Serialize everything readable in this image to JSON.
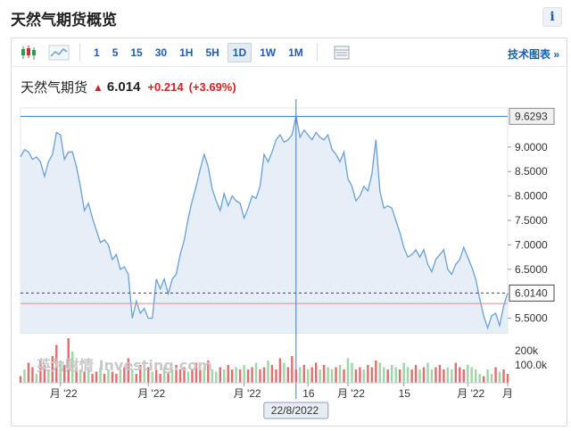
{
  "page": {
    "title": "天然气期货概览",
    "info_label": "i"
  },
  "toolbar": {
    "candle_icon": "candlestick-icon",
    "area_icon": "area-chart-icon",
    "intervals": [
      "1",
      "5",
      "15",
      "30",
      "1H",
      "5H",
      "1D",
      "1W",
      "1M"
    ],
    "active_interval": "1D",
    "table_icon": "table-icon",
    "tech_chart_label": "技术图表 »"
  },
  "quote": {
    "name": "天然气期货",
    "price": "6.014",
    "change": "+0.214",
    "change_pct": "(+3.69%)"
  },
  "chart": {
    "crosshair_date": "22/8/2022",
    "max_label": "9.6293",
    "current_label": "6.0140",
    "watermark": "英为财情 Investing.com",
    "colors": {
      "line": "#6aa0d6",
      "area": "#e6eef7",
      "up": "#e07070",
      "down": "#9fd5a8",
      "current": "#444444",
      "ref": "#e28a8a",
      "crosshair": "#3a7bc8"
    }
  },
  "chart_data": {
    "type": "area",
    "y_axis_ticks": [
      "9.0000",
      "8.5000",
      "8.0000",
      "7.5000",
      "7.0000",
      "6.5000",
      "5.5000"
    ],
    "volume_ticks": [
      "200k",
      "100.0k"
    ],
    "x_tick_labels": [
      "月 '22",
      "月 '22",
      "月 '22",
      "16",
      "月 '22",
      "15",
      "月 '22",
      "月"
    ],
    "ylim": [
      5.2,
      9.8
    ],
    "price": [
      8.8,
      8.95,
      8.9,
      8.75,
      8.8,
      8.7,
      8.4,
      8.7,
      8.85,
      9.3,
      9.25,
      8.75,
      8.9,
      8.9,
      8.6,
      8.2,
      7.7,
      7.85,
      7.55,
      7.3,
      7.05,
      7.1,
      7.0,
      6.7,
      6.8,
      6.5,
      6.55,
      6.4,
      5.5,
      5.85,
      5.6,
      5.7,
      5.5,
      5.5,
      6.3,
      6.1,
      6.3,
      6.0,
      6.3,
      6.4,
      6.8,
      7.1,
      7.55,
      7.9,
      8.2,
      8.55,
      8.85,
      8.6,
      8.15,
      7.9,
      7.7,
      8.05,
      7.8,
      8.0,
      7.9,
      7.85,
      7.55,
      7.75,
      8.0,
      7.95,
      8.2,
      8.85,
      8.7,
      8.9,
      9.15,
      9.25,
      9.1,
      9.15,
      9.25,
      9.63,
      9.2,
      9.35,
      9.25,
      9.15,
      9.3,
      9.2,
      9.15,
      9.25,
      8.95,
      8.85,
      8.7,
      8.9,
      8.35,
      8.2,
      7.9,
      8.0,
      8.2,
      8.1,
      8.45,
      9.15,
      8.1,
      7.75,
      7.8,
      7.75,
      7.5,
      7.25,
      6.95,
      6.75,
      6.8,
      6.9,
      6.75,
      6.9,
      6.6,
      6.45,
      6.7,
      6.8,
      6.9,
      6.5,
      6.4,
      6.6,
      6.7,
      6.95,
      6.75,
      6.55,
      6.3,
      5.9,
      5.55,
      5.3,
      5.55,
      5.6,
      5.35,
      5.75,
      6.01
    ],
    "volume": [
      0.15,
      0.3,
      0.45,
      0.35,
      0.2,
      0.5,
      0.4,
      0.3,
      0.6,
      0.85,
      0.5,
      0.4,
      1.0,
      0.7,
      0.35,
      0.3,
      0.25,
      0.3,
      0.2,
      0.25,
      0.35,
      0.2,
      0.3,
      0.25,
      0.2,
      0.3,
      0.35,
      0.55,
      0.3,
      0.2,
      0.4,
      0.3,
      0.35,
      0.25,
      0.3,
      0.2,
      0.35,
      0.25,
      0.3,
      0.4,
      0.3,
      0.35,
      0.25,
      0.3,
      0.45,
      0.3,
      0.35,
      0.5,
      0.3,
      0.25,
      0.35,
      0.3,
      0.4,
      0.3,
      0.35,
      0.3,
      0.4,
      0.3,
      0.35,
      0.45,
      0.3,
      0.35,
      0.5,
      0.4,
      0.3,
      0.55,
      0.45,
      0.35,
      0.6,
      0.3,
      0.35,
      0.4,
      0.3,
      0.35,
      0.45,
      0.3,
      0.4,
      0.35,
      0.3,
      0.35,
      0.4,
      0.3,
      0.55,
      0.45,
      0.3,
      0.35,
      0.3,
      0.4,
      0.35,
      0.5,
      0.45,
      0.35,
      0.3,
      0.4,
      0.35,
      0.3,
      0.45,
      0.35,
      0.3,
      0.4,
      0.3,
      0.35,
      0.45,
      0.3,
      0.35,
      0.4,
      0.3,
      0.35,
      0.3,
      0.45,
      0.35,
      0.3,
      0.4,
      0.35,
      0.3,
      0.2,
      0.15,
      0.3,
      0.2,
      0.35,
      0.25,
      0.3,
      0.2
    ],
    "volume_up": [
      1,
      0,
      1,
      1,
      0,
      1,
      1,
      0,
      1,
      1,
      0,
      1,
      1,
      0,
      1,
      0,
      1,
      0,
      1,
      1,
      0,
      1,
      0,
      1,
      1,
      0,
      1,
      1,
      0,
      1,
      1,
      0,
      1,
      0,
      1,
      1,
      0,
      1,
      0,
      1,
      1,
      1,
      0,
      1,
      1,
      1,
      0,
      1,
      0,
      0,
      1,
      0,
      1,
      1,
      0,
      1,
      0,
      1,
      1,
      0,
      1,
      1,
      0,
      1,
      1,
      1,
      0,
      1,
      1,
      1,
      0,
      1,
      0,
      1,
      1,
      0,
      1,
      0,
      0,
      1,
      0,
      1,
      0,
      0,
      1,
      1,
      0,
      1,
      1,
      1,
      0,
      0,
      1,
      0,
      0,
      1,
      0,
      0,
      1,
      1,
      0,
      1,
      0,
      0,
      1,
      1,
      1,
      0,
      0,
      1,
      1,
      1,
      0,
      0,
      0,
      0,
      1,
      0,
      0,
      1,
      0,
      1,
      1
    ]
  }
}
